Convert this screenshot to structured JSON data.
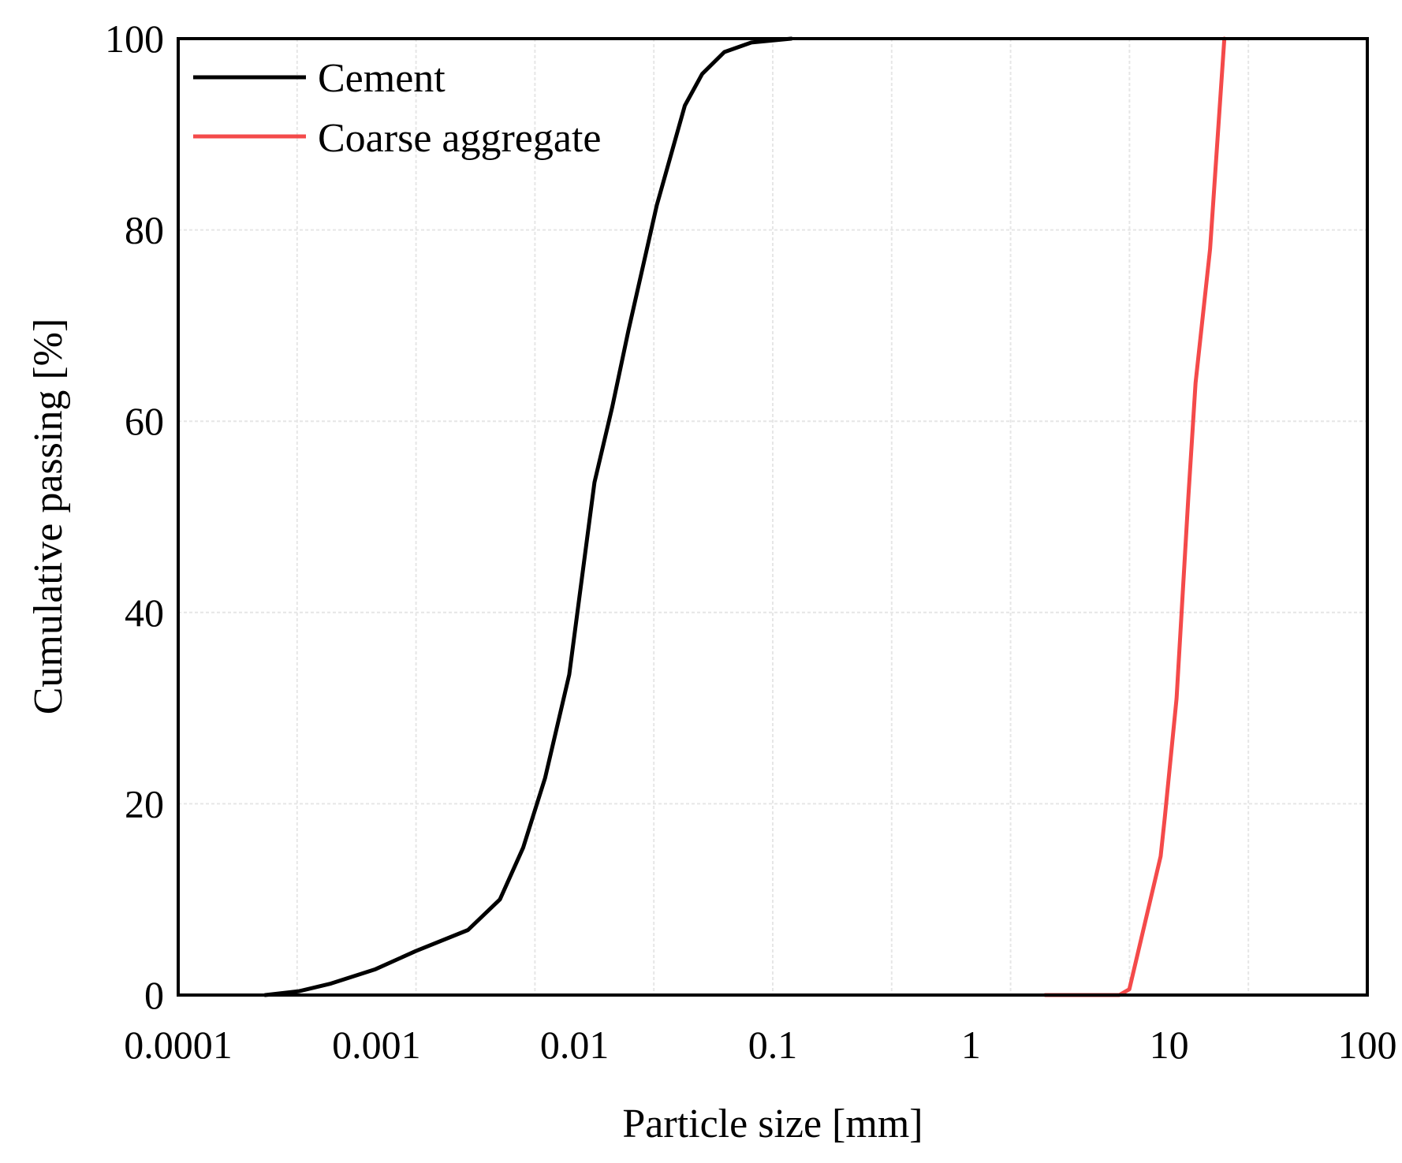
{
  "chart_data": {
    "type": "line",
    "title": "",
    "xlabel": "Particle size [mm]",
    "ylabel": "Cumulative passing [%]",
    "xscale": "log",
    "xlim": [
      0.0001,
      100
    ],
    "ylim": [
      0,
      100
    ],
    "x_ticks": [
      "0.0001",
      "0.001",
      "0.01",
      "0.1",
      "1",
      "10",
      "100"
    ],
    "x_tick_values": [
      0.0001,
      0.001,
      0.01,
      0.1,
      1,
      10,
      100
    ],
    "y_ticks": [
      "0",
      "20",
      "40",
      "60",
      "80",
      "100"
    ],
    "y_tick_values": [
      0,
      20,
      40,
      60,
      80,
      100
    ],
    "grid": true,
    "legend_position": "upper left",
    "series": [
      {
        "name": "Cement",
        "color": "#000000",
        "x": [
          0.000275,
          0.000407,
          0.00059,
          0.00099,
          0.00158,
          0.0029,
          0.0042,
          0.0055,
          0.0071,
          0.0094,
          0.0126,
          0.0155,
          0.0187,
          0.026,
          0.036,
          0.044,
          0.057,
          0.078,
          0.124
        ],
        "y": [
          0,
          0.4,
          1.2,
          2.7,
          4.6,
          6.8,
          10,
          15.4,
          22.7,
          33.5,
          53.6,
          61.5,
          69.5,
          82.6,
          93,
          96.3,
          98.6,
          99.6,
          100
        ]
      },
      {
        "name": "Coarse aggregate",
        "color": "#f44a4a",
        "x": [
          2.37,
          5.6,
          6.3,
          9.06,
          9.5,
          10.9,
          12.5,
          13.6,
          16.1,
          19
        ],
        "y": [
          0,
          0,
          0.6,
          14.5,
          18.5,
          31,
          52,
          64,
          78,
          100
        ]
      }
    ]
  },
  "legend": {
    "items": [
      {
        "label": "Cement",
        "color": "#000000"
      },
      {
        "label": "Coarse aggregate",
        "color": "#f44a4a"
      }
    ]
  }
}
